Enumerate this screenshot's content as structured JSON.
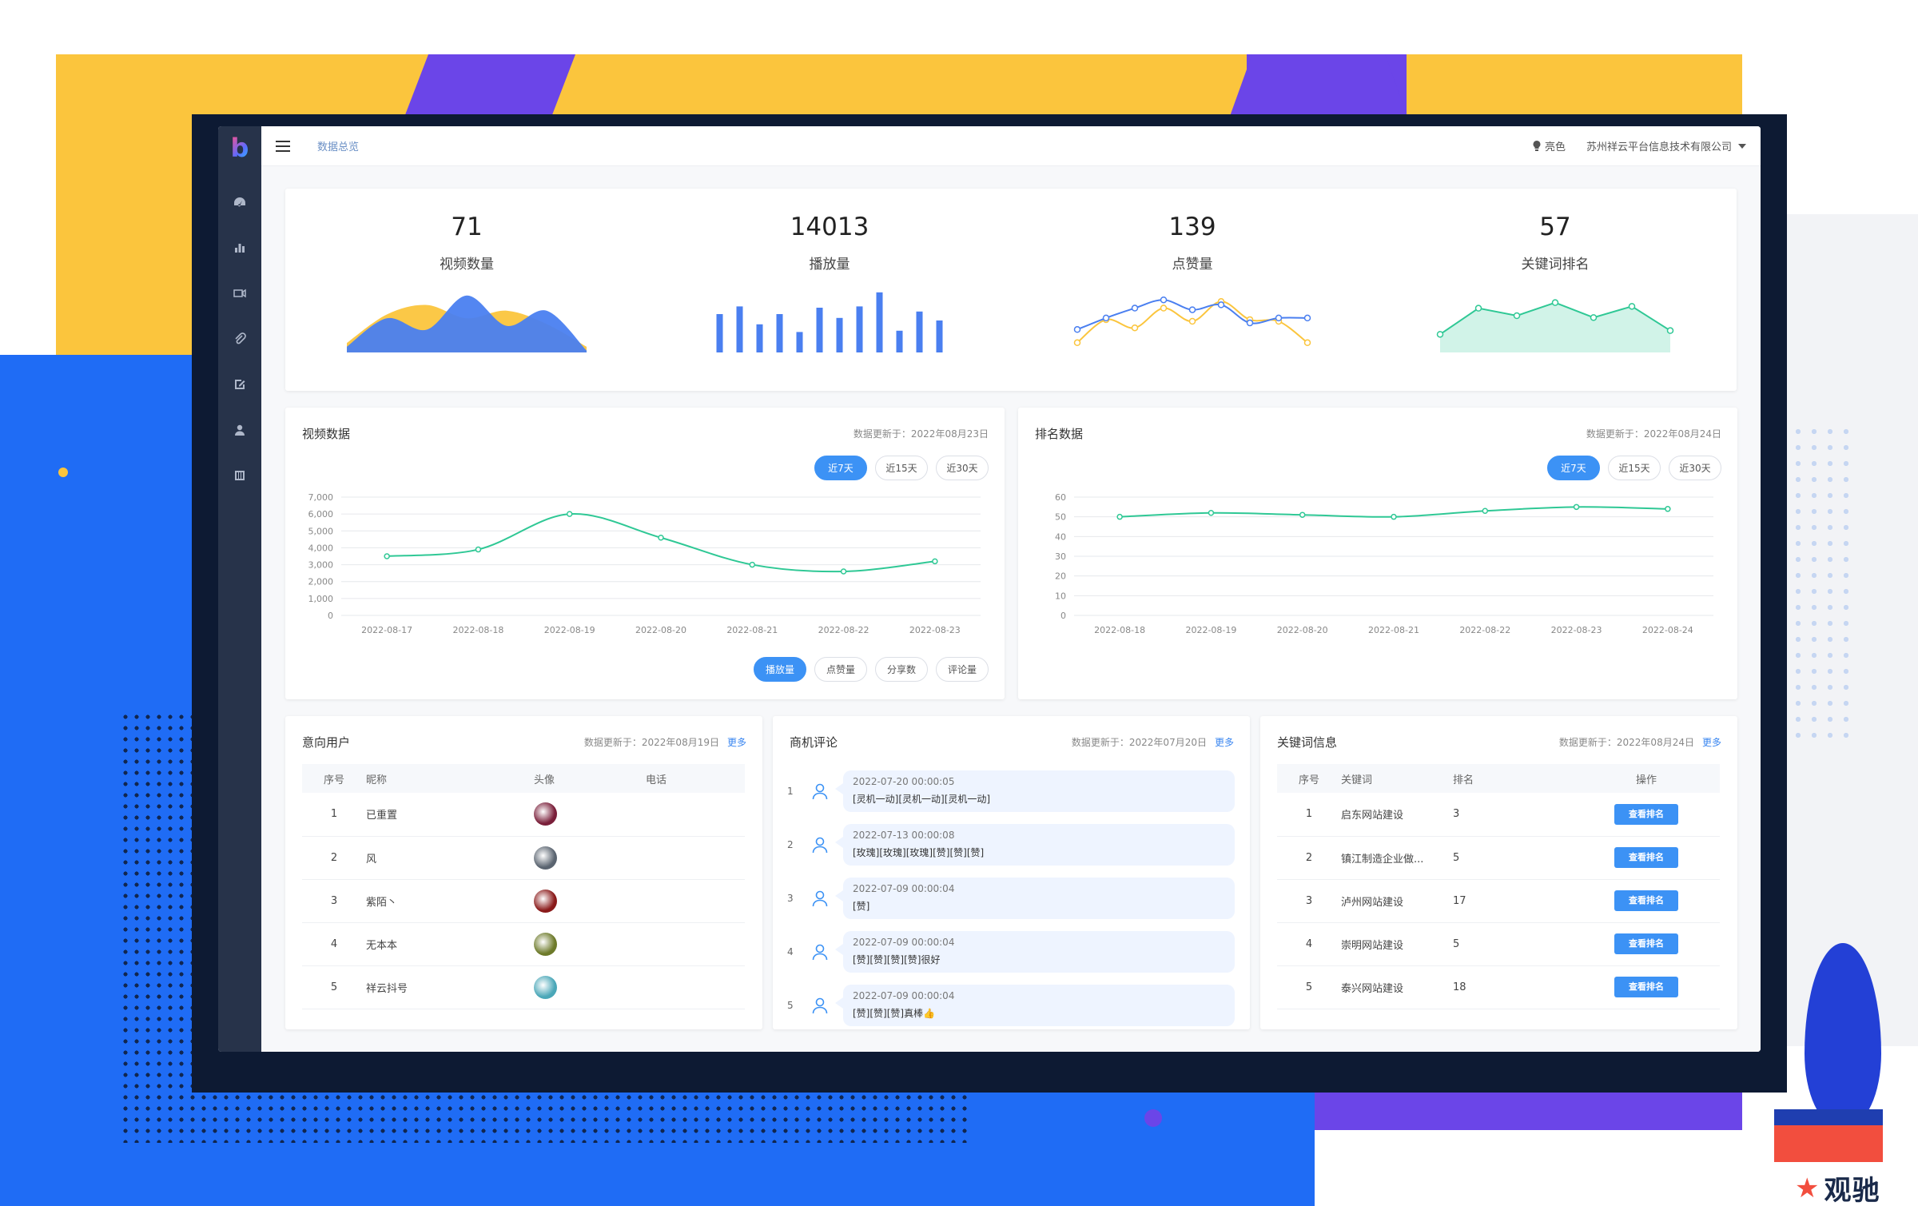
{
  "header": {
    "breadcrumb": "数据总览",
    "theme_label": "亮色",
    "company": "苏州祥云平台信息技术有限公司"
  },
  "sidebar": {
    "items": [
      {
        "icon": "dashboard-icon"
      },
      {
        "icon": "bar-chart-icon"
      },
      {
        "icon": "video-icon"
      },
      {
        "icon": "paperclip-icon"
      },
      {
        "icon": "edit-icon"
      },
      {
        "icon": "user-icon"
      },
      {
        "icon": "building-icon"
      }
    ]
  },
  "stats": [
    {
      "value": "71",
      "label": "视频数量"
    },
    {
      "value": "14013",
      "label": "播放量"
    },
    {
      "value": "139",
      "label": "点赞量"
    },
    {
      "value": "57",
      "label": "关键词排名"
    }
  ],
  "video_panel": {
    "title": "视频数据",
    "updated": "数据更新于：2022年08月23日",
    "range_tabs": [
      "近7天",
      "近15天",
      "近30天"
    ],
    "metric_tabs": [
      "播放量",
      "点赞量",
      "分享数",
      "评论量"
    ]
  },
  "rank_panel": {
    "title": "排名数据",
    "updated": "数据更新于：2022年08月24日",
    "range_tabs": [
      "近7天",
      "近15天",
      "近30天"
    ]
  },
  "users_panel": {
    "title": "意向用户",
    "updated": "数据更新于：2022年08月19日",
    "more": "更多",
    "columns": [
      "序号",
      "昵称",
      "头像",
      "电话"
    ],
    "rows": [
      {
        "idx": "1",
        "name": "已重置",
        "phone": "",
        "avatar_color": "#7a1f3a"
      },
      {
        "idx": "2",
        "name": "风",
        "phone": "",
        "avatar_color": "#5a6470"
      },
      {
        "idx": "3",
        "name": "紫陌丶",
        "phone": "",
        "avatar_color": "#8a1a1a"
      },
      {
        "idx": "4",
        "name": "无本本",
        "phone": "",
        "avatar_color": "#6d7a2a"
      },
      {
        "idx": "5",
        "name": "祥云抖号",
        "phone": "",
        "avatar_color": "#4aa7b8"
      }
    ]
  },
  "comments_panel": {
    "title": "商机评论",
    "updated": "数据更新于：2022年07月20日",
    "more": "更多",
    "items": [
      {
        "idx": "1",
        "time": "2022-07-20 00:00:05",
        "text": "[灵机一动][灵机一动][灵机一动]"
      },
      {
        "idx": "2",
        "time": "2022-07-13 00:00:08",
        "text": "[玫瑰][玫瑰][玫瑰][赞][赞][赞]"
      },
      {
        "idx": "3",
        "time": "2022-07-09 00:00:04",
        "text": "[赞]"
      },
      {
        "idx": "4",
        "time": "2022-07-09 00:00:04",
        "text": "[赞][赞][赞][赞]很好"
      },
      {
        "idx": "5",
        "time": "2022-07-09 00:00:04",
        "text": "[赞][赞][赞]真棒👍"
      }
    ]
  },
  "keywords_panel": {
    "title": "关键词信息",
    "updated": "数据更新于：2022年08月24日",
    "more": "更多",
    "columns": [
      "序号",
      "关键词",
      "排名",
      "操作"
    ],
    "button_label": "查看排名",
    "rows": [
      {
        "idx": "1",
        "keyword": "启东网站建设",
        "rank": "3"
      },
      {
        "idx": "2",
        "keyword": "镇江制造企业做...",
        "rank": "5"
      },
      {
        "idx": "3",
        "keyword": "泸州网站建设",
        "rank": "17"
      },
      {
        "idx": "4",
        "keyword": "崇明网站建设",
        "rank": "5"
      },
      {
        "idx": "5",
        "keyword": "泰兴网站建设",
        "rank": "18"
      }
    ]
  },
  "colors": {
    "accent": "#3c92f5",
    "green": "#2fc895",
    "blue": "#4a7ff0",
    "yellow": "#fbc53d"
  },
  "chart_data": [
    {
      "type": "line",
      "title": "视频数据",
      "x": [
        "2022-08-17",
        "2022-08-18",
        "2022-08-19",
        "2022-08-20",
        "2022-08-21",
        "2022-08-22",
        "2022-08-23"
      ],
      "series": [
        {
          "values": [
            3500,
            3900,
            6000,
            4600,
            3000,
            2600,
            3200
          ]
        }
      ],
      "ylim": [
        0,
        7000
      ],
      "yticks": [
        "0",
        "1,000",
        "2,000",
        "3,000",
        "4,000",
        "5,000",
        "6,000",
        "7,000"
      ],
      "grid": true
    },
    {
      "type": "line",
      "title": "排名数据",
      "x": [
        "2022-08-18",
        "2022-08-19",
        "2022-08-20",
        "2022-08-21",
        "2022-08-22",
        "2022-08-23",
        "2022-08-24"
      ],
      "series": [
        {
          "values": [
            50,
            52,
            51,
            50,
            53,
            55,
            54
          ]
        }
      ],
      "ylim": [
        0,
        60
      ],
      "yticks": [
        "0",
        "10",
        "20",
        "30",
        "40",
        "50",
        "60"
      ],
      "grid": true
    },
    {
      "type": "area",
      "series": [
        {
          "values": [
            5,
            20,
            25,
            18,
            22,
            15,
            3
          ],
          "color": "#fbc53d"
        },
        {
          "values": [
            3,
            18,
            12,
            30,
            14,
            22,
            1
          ],
          "color": "#4a7ff0"
        }
      ]
    },
    {
      "type": "bar",
      "values": [
        30,
        36,
        22,
        30,
        16,
        35,
        27,
        36,
        47,
        17,
        32,
        25
      ],
      "color": "#4a7ff0"
    },
    {
      "type": "line",
      "series": [
        {
          "values": [
            4,
            18,
            13,
            25,
            17,
            29,
            18,
            17,
            4
          ],
          "color": "#fbc53d"
        },
        {
          "values": [
            12,
            19,
            25,
            30,
            24,
            27,
            16,
            19,
            19
          ],
          "color": "#4a7ff0"
        }
      ]
    },
    {
      "type": "area",
      "values": [
        8,
        22,
        18,
        25,
        17,
        23,
        10
      ],
      "color": "#2fc895"
    }
  ]
}
